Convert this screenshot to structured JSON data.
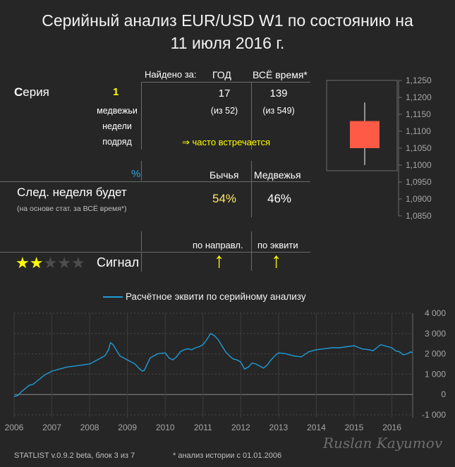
{
  "title": {
    "line1": "Серийный анализ EUR/USD W1 по состоянию на",
    "line2": "11 июля 2016 г."
  },
  "series_table": {
    "found_label": "Найдено за:",
    "col_year": "ГОД",
    "col_all": "ВСЁ время*",
    "row_label_first": "С",
    "row_label_rest": "ерия",
    "count": "1",
    "desc": [
      "медвежьи",
      "недели",
      "подряд"
    ],
    "year_value": "17",
    "year_of": "(из 52)",
    "all_value": "139",
    "all_of": "(из 549)",
    "frequency": "⇒ часто встречается"
  },
  "forecast_table": {
    "percent_label": "%",
    "col_bull": "Бычья",
    "col_bear": "Медвежья",
    "row_label": "След. неделя будет",
    "row_sub": "(на основе стат. за ВСЁ время*)",
    "bull_pct": "54%",
    "bear_pct": "46%"
  },
  "signal_table": {
    "col_dir": "по направл.",
    "col_equity": "по эквити",
    "label": "Сигнал",
    "stars_filled": 2,
    "stars_total": 5,
    "dir_arrow": "↑",
    "equity_arrow": "↑"
  },
  "candle_chart": {
    "type": "candlestick",
    "y_ticks": [
      "1,1250",
      "1,1200",
      "1,1150",
      "1,1100",
      "1,1050",
      "1,1000",
      "1,0950",
      "1,0900",
      "1,0850"
    ],
    "ylim": [
      1.085,
      1.125
    ],
    "candle": {
      "open": 1.113,
      "high": 1.1185,
      "low": 1.1,
      "close": 1.105
    },
    "candle_color": "#ff5a45"
  },
  "chart_data": {
    "type": "line",
    "legend": "Расчётное эквити по серийному анализу",
    "x_ticks": [
      "2006",
      "2007",
      "2008",
      "2009",
      "2010",
      "2011",
      "2012",
      "2013",
      "2014",
      "2015",
      "2016"
    ],
    "y_ticks": [
      "4 000",
      "3 000",
      "2 000",
      "1 000",
      "0",
      "-1 000"
    ],
    "ylim": [
      -1000,
      4000
    ],
    "xlim": [
      2006.0,
      2016.55
    ],
    "line_color": "#1f9bd6",
    "series": [
      {
        "x": [
          2006.0,
          2006.1,
          2006.2,
          2006.3,
          2006.4,
          2006.5,
          2006.6,
          2006.7,
          2006.8,
          2006.9,
          2007.0,
          2007.2,
          2007.4,
          2007.6,
          2007.8,
          2008.0,
          2008.2,
          2008.4,
          2008.5,
          2008.55,
          2008.62,
          2008.7,
          2008.8,
          2008.9,
          2009.0,
          2009.1,
          2009.2,
          2009.3,
          2009.4,
          2009.45,
          2009.5,
          2009.6,
          2009.7,
          2009.8,
          2010.0,
          2010.1,
          2010.2,
          2010.3,
          2010.4,
          2010.5,
          2010.6,
          2010.7,
          2010.8,
          2010.9,
          2011.0,
          2011.1,
          2011.2,
          2011.3,
          2011.4,
          2011.5,
          2011.6,
          2011.7,
          2011.8,
          2011.9,
          2012.0,
          2012.1,
          2012.2,
          2012.3,
          2012.4,
          2012.5,
          2012.6,
          2012.7,
          2012.8,
          2012.9,
          2013.0,
          2013.2,
          2013.4,
          2013.6,
          2013.8,
          2014.0,
          2014.2,
          2014.4,
          2014.6,
          2014.8,
          2015.0,
          2015.2,
          2015.4,
          2015.5,
          2015.6,
          2015.7,
          2015.8,
          2016.0,
          2016.1,
          2016.2,
          2016.3,
          2016.4,
          2016.5,
          2016.55
        ],
        "y": [
          -100,
          -50,
          150,
          300,
          450,
          500,
          650,
          800,
          950,
          1050,
          1150,
          1250,
          1350,
          1400,
          1450,
          1500,
          1700,
          1900,
          2200,
          2550,
          2450,
          2200,
          1900,
          1800,
          1700,
          1600,
          1500,
          1300,
          1150,
          1200,
          1400,
          1800,
          1900,
          2000,
          2050,
          1800,
          1700,
          1850,
          2100,
          2200,
          2250,
          2200,
          2300,
          2350,
          2450,
          2700,
          3000,
          2900,
          2700,
          2400,
          2100,
          1900,
          1750,
          1700,
          1600,
          1250,
          1350,
          1550,
          1500,
          1400,
          1300,
          1450,
          1700,
          1900,
          2050,
          2000,
          1900,
          1850,
          2100,
          2200,
          2250,
          2300,
          2300,
          2350,
          2400,
          2250,
          2200,
          2150,
          2300,
          2450,
          2400,
          2300,
          2150,
          2100,
          1950,
          2000,
          2100,
          2050
        ]
      }
    ]
  },
  "footer": {
    "version": "STATLIST v.0.9.2 beta, блок 3 из 7",
    "note": "* анализ истории с 01.01.2006",
    "signature": "Ruslan Kayumov"
  }
}
